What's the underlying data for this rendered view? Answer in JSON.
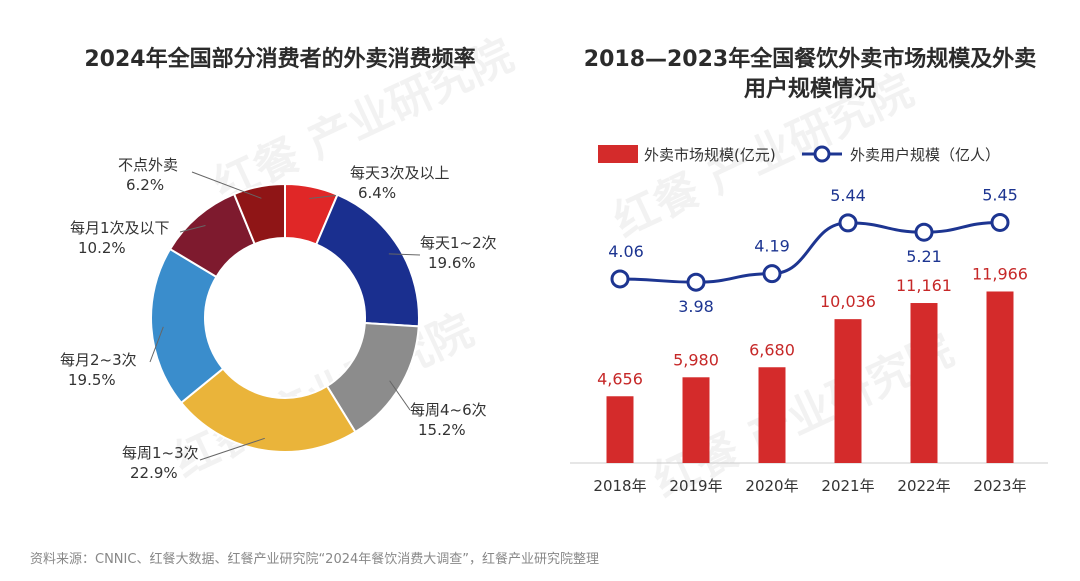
{
  "left_chart": {
    "title": "2024年全国部分消费者的外卖消费频率"
  },
  "right_chart": {
    "title_line1": "2018—2023年全国餐饮外卖市场规模及外卖",
    "title_line2": "用户规模情况"
  },
  "source": "资料来源：CNNIC、红餐大数据、红餐产业研究院“2024年餐饮消费大调查”，红餐产业研究院整理",
  "watermark": "红餐 产业研究院",
  "chart_data": [
    {
      "type": "pie",
      "title": "2024年全国部分消费者的外卖消费频率",
      "categories": [
        "每天3次及以上",
        "每天1~2次",
        "每周4~6次",
        "每周1~3次",
        "每月2~3次",
        "每月1次及以下",
        "不点外卖"
      ],
      "values": [
        6.4,
        19.6,
        15.2,
        22.9,
        19.5,
        10.2,
        6.2
      ],
      "value_labels": [
        "6.4%",
        "19.6%",
        "15.2%",
        "22.9%",
        "19.5%",
        "10.2%",
        "6.2%"
      ],
      "colors": [
        "#e02727",
        "#1a2f8f",
        "#8c8c8c",
        "#eab43a",
        "#3a8dcc",
        "#7e1a2e",
        "#8f1516"
      ]
    },
    {
      "type": "bar",
      "title": "2018—2023年全国餐饮外卖市场规模及外卖用户规模情况",
      "categories": [
        "2018年",
        "2019年",
        "2020年",
        "2021年",
        "2022年",
        "2023年"
      ],
      "series": [
        {
          "name": "外卖市场规模(亿元)",
          "type": "bar",
          "color": "#d42b2b",
          "values": [
            4656,
            5980,
            6680,
            10036,
            11161,
            11966
          ],
          "labels": [
            "4,656",
            "5,980",
            "6,680",
            "10,036",
            "11,161",
            "11,966"
          ]
        },
        {
          "name": "外卖用户规模（亿人）",
          "type": "line",
          "color": "#1d3591",
          "values": [
            4.06,
            3.98,
            4.19,
            5.44,
            5.21,
            5.45
          ],
          "labels": [
            "4.06",
            "3.98",
            "4.19",
            "5.44",
            "5.21",
            "5.45"
          ]
        }
      ],
      "ylim_bar": [
        0,
        16000
      ],
      "ylim_line": [
        3,
        6.2
      ]
    }
  ]
}
